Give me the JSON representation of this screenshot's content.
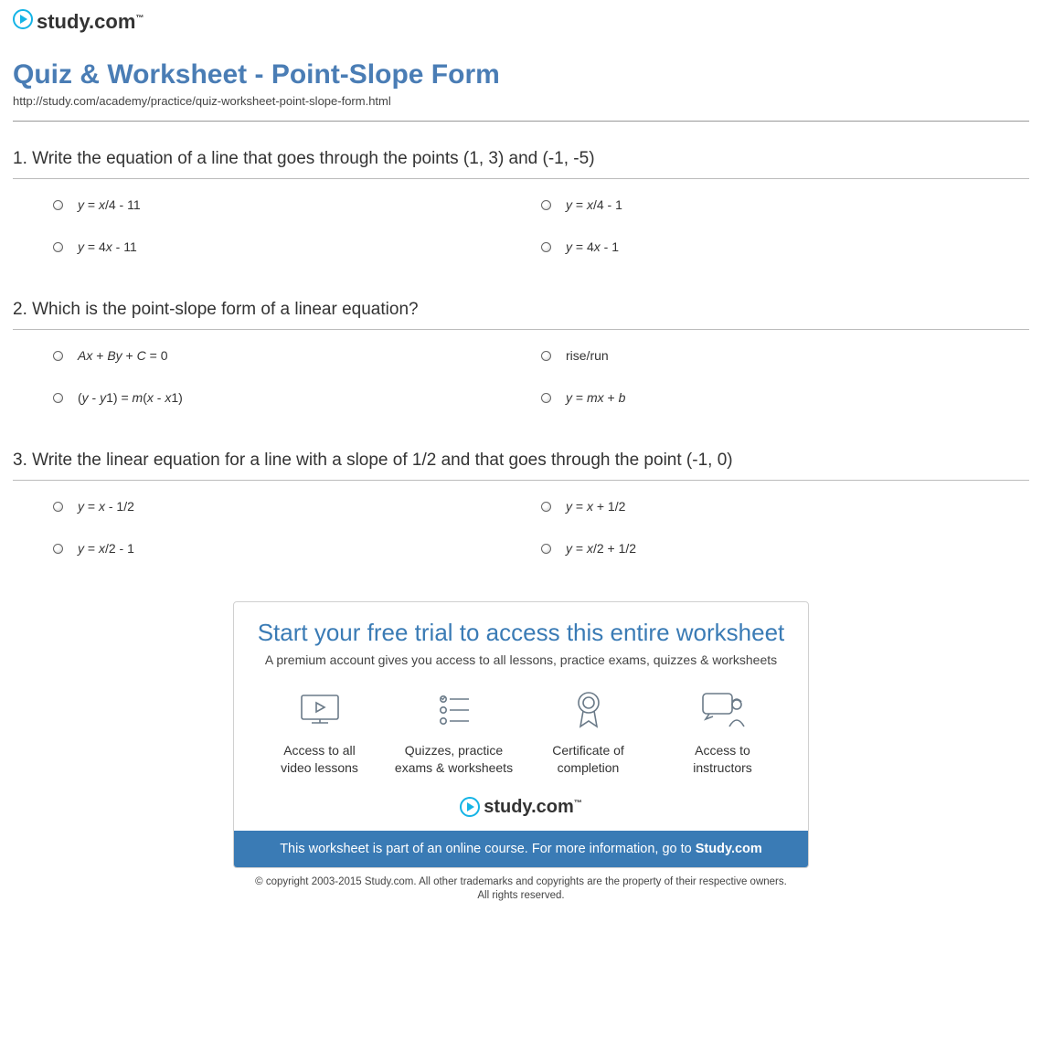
{
  "colors": {
    "title": "#4a7db5",
    "promoTitle": "#3a7bb5",
    "promoBarBg": "#3a7bb5",
    "logoPlay": "#15b4e6",
    "iconStroke": "#6a7a88"
  },
  "brand": {
    "name": "study.com",
    "tm": "™"
  },
  "page": {
    "title": "Quiz & Worksheet - Point-Slope Form",
    "url": "http://study.com/academy/practice/quiz-worksheet-point-slope-form.html"
  },
  "questions": [
    {
      "number": "1.",
      "text": "Write the equation of a line that goes through the points (1, 3) and (-1, -5)",
      "answers": [
        "<i>y</i> = <i>x</i>/4 - 11",
        "<i>y</i> = <i>x</i>/4 - 1",
        "<i>y</i> = 4<i>x</i> - 11",
        "<i>y</i> = 4<i>x</i> - 1"
      ]
    },
    {
      "number": "2.",
      "text": "Which is the point-slope form of a linear equation?",
      "answers": [
        "<i>Ax</i> + <i>By</i> + <i>C</i> = 0",
        "rise/run",
        "(<i>y</i> - <i>y</i>1) = <i>m</i>(<i>x</i> - <i>x</i>1)",
        "<i>y</i> = <i>mx</i> + <i>b</i>"
      ]
    },
    {
      "number": "3.",
      "text": "Write the linear equation for a line with a slope of 1/2 and that goes through the point (-1, 0)",
      "answers": [
        "<i>y</i> = <i>x</i> - 1/2",
        "<i>y</i> = <i>x</i> + 1/2",
        "<i>y</i> = <i>x</i>/2 - 1",
        "<i>y</i> = <i>x</i>/2 + 1/2"
      ]
    }
  ],
  "promo": {
    "title": "Start your free trial to access this entire worksheet",
    "subtitle": "A premium account gives you access to all lessons, practice exams, quizzes & worksheets",
    "benefits": [
      {
        "icon": "video",
        "line1": "Access to all",
        "line2": "video lessons"
      },
      {
        "icon": "list",
        "line1": "Quizzes, practice",
        "line2": "exams & worksheets"
      },
      {
        "icon": "ribbon",
        "line1": "Certificate of",
        "line2": "completion"
      },
      {
        "icon": "instructor",
        "line1": "Access to",
        "line2": "instructors"
      }
    ],
    "barText": "This worksheet is part of an online course. For more information, go to ",
    "barBold": "Study.com"
  },
  "copyright": {
    "line1": "© copyright 2003-2015 Study.com. All other trademarks and copyrights are the property of their respective owners.",
    "line2": "All rights reserved."
  }
}
